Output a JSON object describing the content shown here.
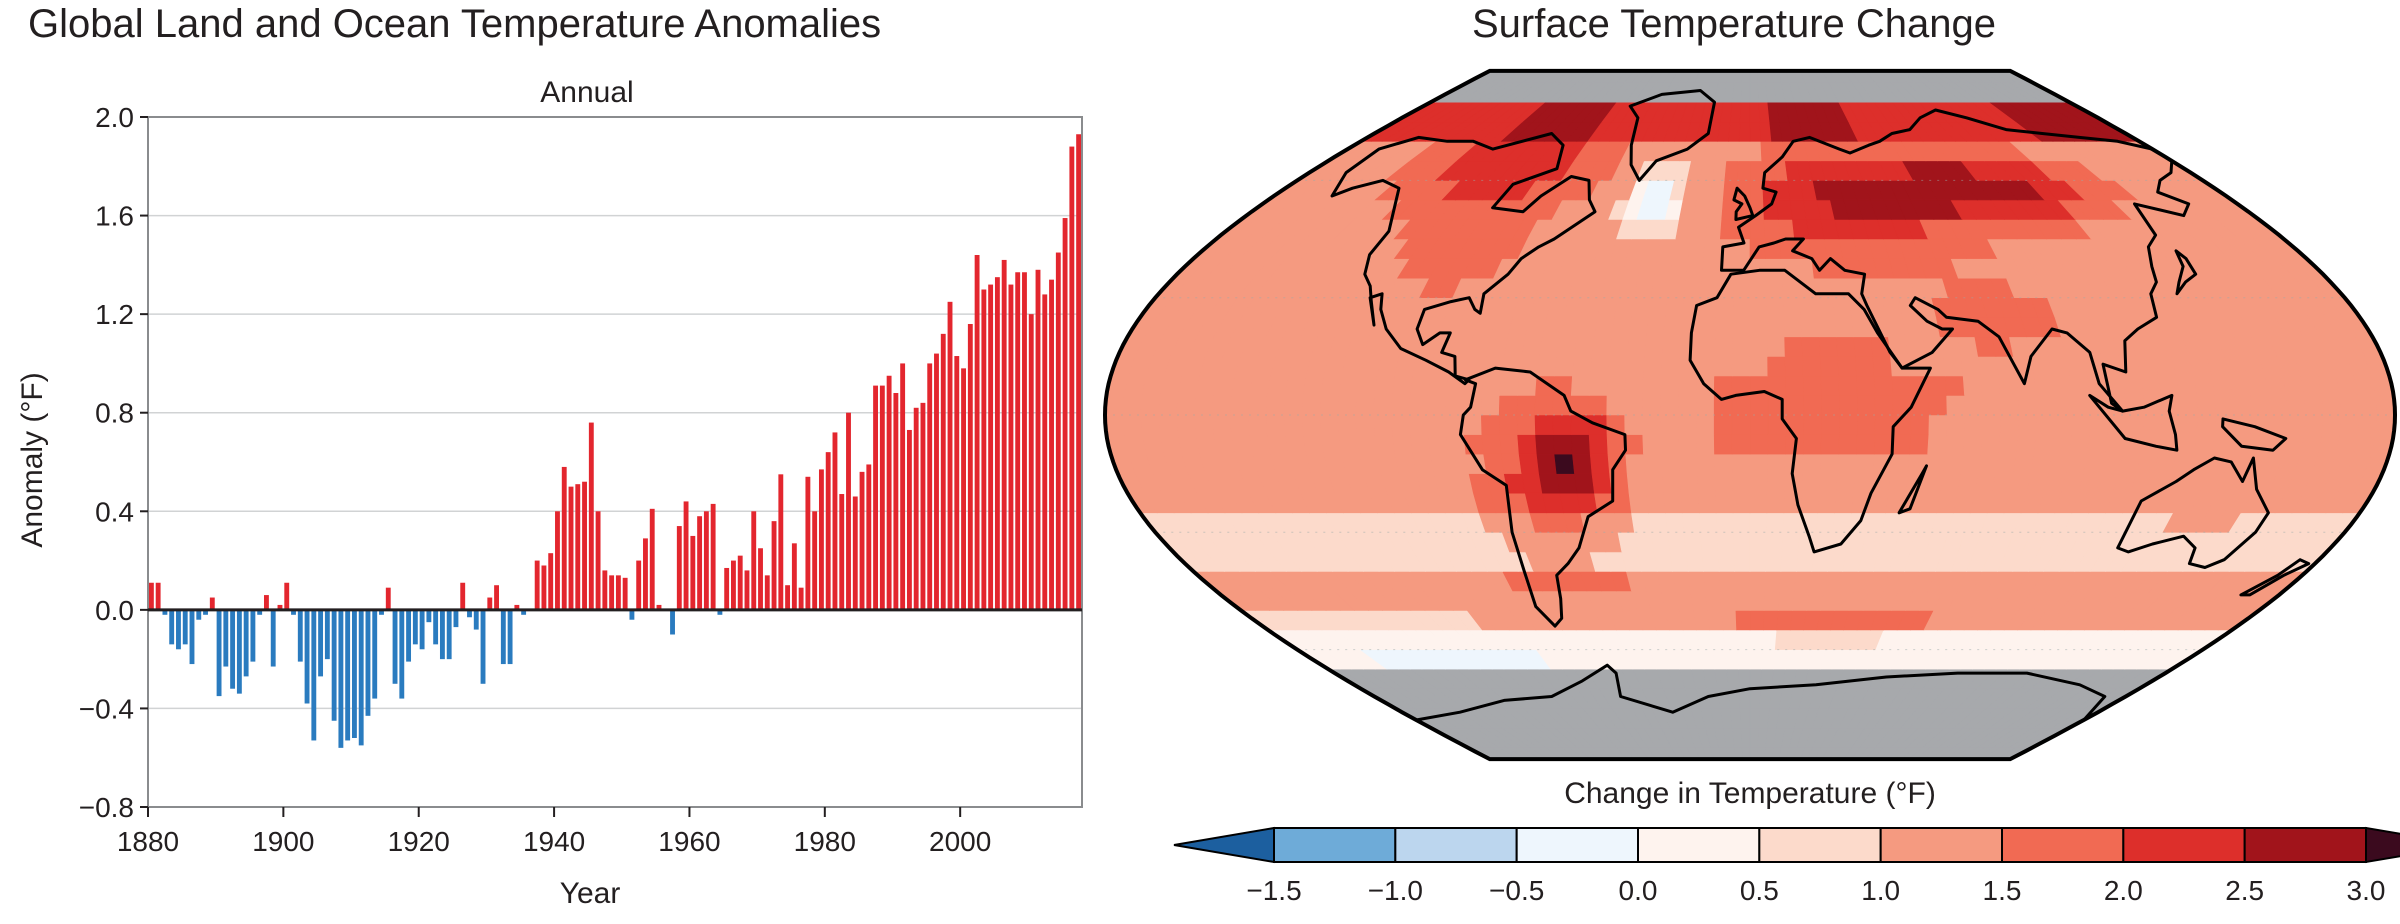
{
  "titles": {
    "left": "Global Land and Ocean Temperature Anomalies",
    "right": "Surface Temperature Change"
  },
  "chart_data": [
    {
      "type": "bar",
      "title": "Global Land and Ocean Temperature Anomalies",
      "subtitle": "Annual",
      "xlabel": "Year",
      "ylabel": "Anomaly (°F)",
      "ylim": [
        -0.8,
        2.0
      ],
      "yticks": [
        "−0.8",
        "−0.4",
        "0.0",
        "0.4",
        "0.8",
        "1.2",
        "1.6",
        "2.0"
      ],
      "ytick_values": [
        -0.8,
        -0.4,
        0.0,
        0.4,
        0.8,
        1.2,
        1.6,
        2.0
      ],
      "xlim": [
        1880,
        2018
      ],
      "xticks": [
        "1880",
        "1900",
        "1920",
        "1940",
        "1960",
        "1980",
        "2000"
      ],
      "xtick_values": [
        1880,
        1900,
        1920,
        1940,
        1960,
        1980,
        2000
      ],
      "grid": "horizontal",
      "colors": {
        "positive": "#e3262e",
        "negative": "#2a7bbf"
      },
      "x": [
        1880,
        1881,
        1882,
        1883,
        1884,
        1885,
        1886,
        1887,
        1888,
        1889,
        1890,
        1891,
        1892,
        1893,
        1894,
        1895,
        1896,
        1897,
        1898,
        1899,
        1900,
        1901,
        1902,
        1903,
        1904,
        1905,
        1906,
        1907,
        1908,
        1909,
        1910,
        1911,
        1912,
        1913,
        1914,
        1915,
        1916,
        1917,
        1918,
        1919,
        1920,
        1921,
        1922,
        1923,
        1924,
        1925,
        1926,
        1927,
        1928,
        1929,
        1930,
        1931,
        1932,
        1933,
        1934,
        1935,
        1936,
        1937,
        1938,
        1939,
        1940,
        1941,
        1942,
        1943,
        1944,
        1945,
        1946,
        1947,
        1948,
        1949,
        1950,
        1951,
        1952,
        1953,
        1954,
        1955,
        1956,
        1957,
        1958,
        1959,
        1960,
        1961,
        1962,
        1963,
        1964,
        1965,
        1966,
        1967,
        1968,
        1969,
        1970,
        1971,
        1972,
        1973,
        1974,
        1975,
        1976,
        1977,
        1978,
        1979,
        1980,
        1981,
        1982,
        1983,
        1984,
        1985,
        1986,
        1987,
        1988,
        1989,
        1990,
        1991,
        1992,
        1993,
        1994,
        1995,
        1996,
        1997,
        1998,
        1999,
        2000,
        2001,
        2002,
        2003,
        2004,
        2005,
        2006,
        2007,
        2008,
        2009,
        2010,
        2011,
        2012,
        2013,
        2014,
        2015,
        2016,
        2017
      ],
      "values": [
        0.11,
        0.11,
        -0.02,
        -0.14,
        -0.16,
        -0.14,
        -0.22,
        -0.04,
        -0.02,
        0.05,
        -0.35,
        -0.23,
        -0.32,
        -0.34,
        -0.27,
        -0.21,
        -0.02,
        0.06,
        -0.23,
        0.02,
        0.11,
        -0.02,
        -0.21,
        -0.38,
        -0.53,
        -0.27,
        -0.2,
        -0.45,
        -0.56,
        -0.53,
        -0.52,
        -0.55,
        -0.43,
        -0.36,
        -0.02,
        0.09,
        -0.3,
        -0.36,
        -0.21,
        -0.14,
        -0.16,
        -0.05,
        -0.14,
        -0.2,
        -0.2,
        -0.07,
        0.11,
        -0.03,
        -0.08,
        -0.3,
        0.05,
        0.1,
        -0.22,
        -0.22,
        0.02,
        -0.02,
        0.0,
        0.2,
        0.18,
        0.23,
        0.4,
        0.58,
        0.5,
        0.51,
        0.52,
        0.76,
        0.4,
        0.16,
        0.14,
        0.14,
        0.13,
        -0.04,
        0.2,
        0.29,
        0.41,
        0.02,
        0.0,
        -0.1,
        0.34,
        0.44,
        0.3,
        0.38,
        0.4,
        0.43,
        -0.02,
        0.17,
        0.2,
        0.22,
        0.16,
        0.4,
        0.25,
        0.14,
        0.36,
        0.55,
        0.1,
        0.27,
        0.09,
        0.54,
        0.4,
        0.57,
        0.64,
        0.72,
        0.47,
        0.8,
        0.46,
        0.56,
        0.59,
        0.91,
        0.91,
        0.95,
        0.88,
        1.0,
        0.73,
        0.82,
        0.84,
        1.0,
        1.04,
        1.12,
        1.25,
        1.03,
        0.98,
        1.16,
        1.44,
        1.3,
        1.32,
        1.35,
        1.42,
        1.32,
        1.37,
        1.37,
        1.2,
        1.38,
        1.28,
        1.34,
        1.45,
        1.59,
        1.88,
        1.93
      ]
    },
    {
      "type": "heatmap",
      "title": "Surface Temperature Change",
      "colorbar_label": "Change in Temperature (°F)",
      "colorbar_ticks": [
        "−1.5",
        "−1.0",
        "−0.5",
        "0.0",
        "0.5",
        "1.0",
        "1.5",
        "2.0",
        "2.5",
        "3.0"
      ],
      "colorbar_bins": [
        {
          "from": -1.5,
          "to": -1.0,
          "color": "#6eabd8"
        },
        {
          "from": -1.0,
          "to": -0.5,
          "color": "#bcd6ee"
        },
        {
          "from": -0.5,
          "to": 0.0,
          "color": "#eef6fd"
        },
        {
          "from": 0.0,
          "to": 0.5,
          "color": "#fef3ee"
        },
        {
          "from": 0.5,
          "to": 1.0,
          "color": "#fcdacb"
        },
        {
          "from": 1.0,
          "to": 1.5,
          "color": "#f59a80"
        },
        {
          "from": 1.5,
          "to": 2.0,
          "color": "#f16a53"
        },
        {
          "from": 2.0,
          "to": 2.5,
          "color": "#dd2f2b"
        },
        {
          "from": 2.5,
          "to": 3.0,
          "color": "#a1141b"
        }
      ],
      "colorbar_extend_low": "#1c5f9f",
      "colorbar_extend_high": "#3b0a1e",
      "missing_color": "#a7a9ac",
      "regions": [
        {
          "name": "Arctic band",
          "value": 2.6
        },
        {
          "name": "North Atlantic",
          "value": -0.3
        },
        {
          "name": "Siberia / Central Asia",
          "value": 2.8
        },
        {
          "name": "North America",
          "value": 1.8
        },
        {
          "name": "Europe",
          "value": 1.9
        },
        {
          "name": "Africa",
          "value": 1.7
        },
        {
          "name": "South America",
          "value": 1.8
        },
        {
          "name": "Central Brazil",
          "value": 2.7
        },
        {
          "name": "Australia",
          "value": 1.6
        },
        {
          "name": "Tropical oceans",
          "value": 1.2
        },
        {
          "name": "Southern Ocean",
          "value": 0.6
        },
        {
          "name": "Antarctica",
          "value": null
        }
      ]
    }
  ]
}
